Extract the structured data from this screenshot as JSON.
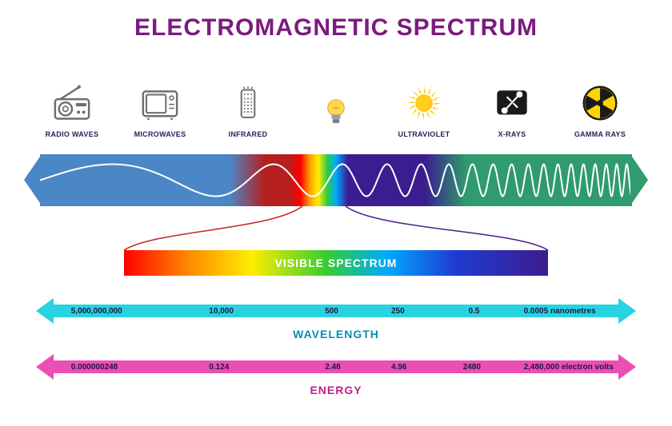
{
  "title": {
    "text": "ELECTROMAGNETIC SPECTRUM",
    "color": "#7b1a7e",
    "fontsize": 30
  },
  "background": "#ffffff",
  "bands": [
    {
      "label": "RADIO WAVES",
      "icon": "radio"
    },
    {
      "label": "MICROWAVES",
      "icon": "microwave"
    },
    {
      "label": "INFRARED",
      "icon": "remote"
    },
    {
      "label": "",
      "icon": "bulb"
    },
    {
      "label": "ULTRAVIOLET",
      "icon": "sun"
    },
    {
      "label": "X-RAYS",
      "icon": "xray"
    },
    {
      "label": "GAMMA RAYS",
      "icon": "radiation"
    }
  ],
  "icon_color": "#6e6e6e",
  "label_color": "#26225a",
  "spectrum": {
    "gradient": "linear-gradient(to right, #4b87c6 0%, #4b87c6 32%, #b51f1f 38%, #b51f1f 42%, #ff0000 44%, #ff9900 45.5%, #ffee00 47%, #2ecc40 48.5%, #00aaff 50%, #3b1d8f 52%, #3b1d8f 65%, #2f9b6e 72%, #2f9b6e 100%)",
    "arrow_left_color": "#4b87c6",
    "arrow_right_color": "#2f9b6e",
    "wave_color": "#ffffff",
    "wave_stroke": 2
  },
  "connector": {
    "left_color": "#c62222",
    "right_color": "#4a1e8f"
  },
  "visible": {
    "label": "VISIBLE SPECTRUM",
    "label_color": "#ffffff",
    "gradient": "linear-gradient(to right, #ff0000 0%, #ff8800 15%, #ffee00 30%, #33cc33 48%, #00aaff 62%, #1f3bd1 78%, #3b1d8f 100%)"
  },
  "wavelength": {
    "label": "WAVELENGTH",
    "color": "#27d3e0",
    "label_color": "#0a8fb0",
    "unit": "nanometres",
    "values": [
      "5,000,000,000",
      "10,000",
      "500",
      "250",
      "0.5",
      "0.0005"
    ],
    "positions": [
      2,
      27,
      48,
      60,
      74,
      84
    ]
  },
  "energy": {
    "label": "ENERGY",
    "color": "#ec4fb3",
    "label_color": "#c21f8f",
    "unit": "electron volts",
    "values": [
      "0.000000248",
      "0.124",
      "2.48",
      "4.96",
      "2480",
      "2,480,000"
    ],
    "positions": [
      2,
      27,
      48,
      60,
      73,
      84
    ]
  }
}
